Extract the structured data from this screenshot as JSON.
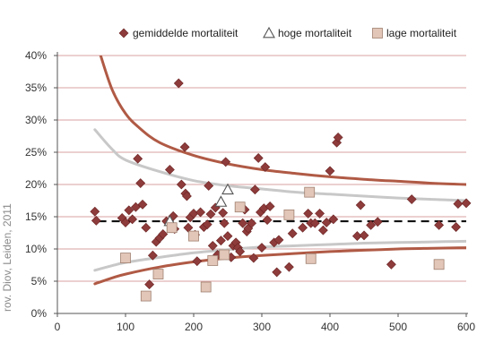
{
  "colors": {
    "average": "#8e3b3b",
    "average_stroke": "#6a2222",
    "low": "#e2c6b8",
    "low_stroke": "#a08070",
    "high_stroke": "#555555",
    "outer_funnel": "#b05a45",
    "inner_funnel": "#c8c8c8",
    "gridline": "#d9a0a0",
    "mean_line": "#111111",
    "axis": "#555555"
  },
  "side_text": "rov. Diov, Leiden, 2011",
  "chart_data": {
    "type": "scatter",
    "xlim": [
      0,
      600
    ],
    "ylim": [
      0,
      40
    ],
    "x_ticks": [
      0,
      100,
      200,
      300,
      400,
      500,
      600
    ],
    "x_tick_labels": [
      "0",
      "100",
      "200",
      "300",
      "400",
      "500",
      "600"
    ],
    "y_ticks": [
      0,
      5,
      10,
      15,
      20,
      25,
      30,
      35,
      40
    ],
    "y_tick_labels": [
      "0%",
      "5%",
      "10%",
      "15%",
      "20%",
      "25%",
      "30%",
      "35%",
      "40%"
    ],
    "grid": "horizontal",
    "legend_position": "top",
    "reference_line": {
      "style": "dashed",
      "y": 14.3,
      "x_range": [
        60,
        600
      ]
    },
    "funnel_outer": {
      "upper": [
        [
          62,
          40.5
        ],
        [
          80,
          34.8
        ],
        [
          100,
          31.0
        ],
        [
          120,
          28.8
        ],
        [
          150,
          26.5
        ],
        [
          200,
          24.5
        ],
        [
          250,
          23.2
        ],
        [
          300,
          22.3
        ],
        [
          350,
          21.7
        ],
        [
          400,
          21.2
        ],
        [
          450,
          20.8
        ],
        [
          500,
          20.5
        ],
        [
          550,
          20.2
        ],
        [
          600,
          20.0
        ]
      ],
      "lower": [
        [
          55,
          4.6
        ],
        [
          80,
          5.5
        ],
        [
          100,
          6.1
        ],
        [
          150,
          7.2
        ],
        [
          200,
          8.0
        ],
        [
          250,
          8.6
        ],
        [
          300,
          9.0
        ],
        [
          350,
          9.3
        ],
        [
          400,
          9.6
        ],
        [
          450,
          9.8
        ],
        [
          500,
          10.0
        ],
        [
          550,
          10.1
        ],
        [
          600,
          10.2
        ]
      ]
    },
    "funnel_inner": {
      "upper": [
        [
          55,
          28.5
        ],
        [
          80,
          25.5
        ],
        [
          100,
          23.8
        ],
        [
          150,
          22.0
        ],
        [
          200,
          20.6
        ],
        [
          250,
          19.8
        ],
        [
          300,
          19.3
        ],
        [
          350,
          18.8
        ],
        [
          400,
          18.5
        ],
        [
          450,
          18.2
        ],
        [
          500,
          17.9
        ],
        [
          550,
          17.7
        ],
        [
          600,
          17.5
        ]
      ],
      "lower": [
        [
          55,
          6.7
        ],
        [
          80,
          7.4
        ],
        [
          100,
          7.9
        ],
        [
          150,
          8.7
        ],
        [
          200,
          9.4
        ],
        [
          250,
          9.9
        ],
        [
          300,
          10.3
        ],
        [
          350,
          10.5
        ],
        [
          400,
          10.7
        ],
        [
          450,
          10.9
        ],
        [
          500,
          11.0
        ],
        [
          550,
          11.1
        ],
        [
          600,
          11.2
        ]
      ]
    },
    "series": [
      {
        "name": "gemiddelde mortaliteit",
        "marker": "diamond",
        "points": [
          [
            55,
            15.8
          ],
          [
            57,
            14.4
          ],
          [
            95,
            14.8
          ],
          [
            100,
            14.1
          ],
          [
            105,
            16.0
          ],
          [
            110,
            14.6
          ],
          [
            115,
            16.5
          ],
          [
            118,
            24.0
          ],
          [
            122,
            20.2
          ],
          [
            125,
            16.9
          ],
          [
            130,
            13.3
          ],
          [
            135,
            4.5
          ],
          [
            140,
            9.0
          ],
          [
            145,
            11.1
          ],
          [
            150,
            11.7
          ],
          [
            155,
            12.3
          ],
          [
            160,
            14.3
          ],
          [
            165,
            22.3
          ],
          [
            170,
            15.1
          ],
          [
            172,
            13.1
          ],
          [
            178,
            35.7
          ],
          [
            182,
            20.0
          ],
          [
            187,
            25.8
          ],
          [
            188,
            18.6
          ],
          [
            190,
            18.2
          ],
          [
            192,
            13.3
          ],
          [
            195,
            14.9
          ],
          [
            200,
            15.5
          ],
          [
            202,
            12.2
          ],
          [
            205,
            8.1
          ],
          [
            210,
            15.7
          ],
          [
            215,
            13.4
          ],
          [
            220,
            13.8
          ],
          [
            222,
            19.8
          ],
          [
            225,
            15.4
          ],
          [
            228,
            10.5
          ],
          [
            232,
            16.4
          ],
          [
            235,
            9.1
          ],
          [
            240,
            11.3
          ],
          [
            243,
            15.6
          ],
          [
            245,
            14.0
          ],
          [
            247,
            23.5
          ],
          [
            250,
            12.0
          ],
          [
            255,
            8.7
          ],
          [
            258,
            10.5
          ],
          [
            262,
            11.0
          ],
          [
            265,
            10.2
          ],
          [
            268,
            9.6
          ],
          [
            272,
            14.0
          ],
          [
            275,
            16.1
          ],
          [
            278,
            12.7
          ],
          [
            280,
            13.2
          ],
          [
            285,
            14.0
          ],
          [
            288,
            8.6
          ],
          [
            290,
            19.2
          ],
          [
            295,
            24.1
          ],
          [
            298,
            15.7
          ],
          [
            300,
            10.2
          ],
          [
            303,
            16.3
          ],
          [
            305,
            22.7
          ],
          [
            308,
            14.5
          ],
          [
            312,
            16.6
          ],
          [
            318,
            11.0
          ],
          [
            322,
            6.4
          ],
          [
            325,
            11.4
          ],
          [
            340,
            7.2
          ],
          [
            345,
            12.4
          ],
          [
            360,
            13.3
          ],
          [
            368,
            15.5
          ],
          [
            372,
            14.0
          ],
          [
            378,
            14.0
          ],
          [
            385,
            15.5
          ],
          [
            390,
            12.9
          ],
          [
            395,
            14.1
          ],
          [
            400,
            22.1
          ],
          [
            405,
            14.6
          ],
          [
            410,
            26.5
          ],
          [
            412,
            27.3
          ],
          [
            440,
            12.0
          ],
          [
            445,
            16.8
          ],
          [
            450,
            12.1
          ],
          [
            460,
            13.7
          ],
          [
            470,
            14.2
          ],
          [
            490,
            7.6
          ],
          [
            520,
            17.7
          ],
          [
            560,
            13.7
          ],
          [
            585,
            13.4
          ],
          [
            588,
            17.0
          ],
          [
            600,
            17.1
          ]
        ]
      },
      {
        "name": "hoge mortaliteit",
        "marker": "triangle",
        "points": [
          [
            165,
            14.3
          ],
          [
            240,
            17.3
          ],
          [
            250,
            19.2
          ]
        ]
      },
      {
        "name": "lage mortaliteit",
        "marker": "square",
        "points": [
          [
            100,
            8.6
          ],
          [
            130,
            2.7
          ],
          [
            148,
            6.1
          ],
          [
            168,
            13.3
          ],
          [
            200,
            12.0
          ],
          [
            218,
            4.1
          ],
          [
            228,
            8.2
          ],
          [
            245,
            9.1
          ],
          [
            268,
            16.5
          ],
          [
            340,
            15.3
          ],
          [
            370,
            18.8
          ],
          [
            372,
            8.5
          ],
          [
            560,
            7.6
          ]
        ]
      }
    ]
  }
}
